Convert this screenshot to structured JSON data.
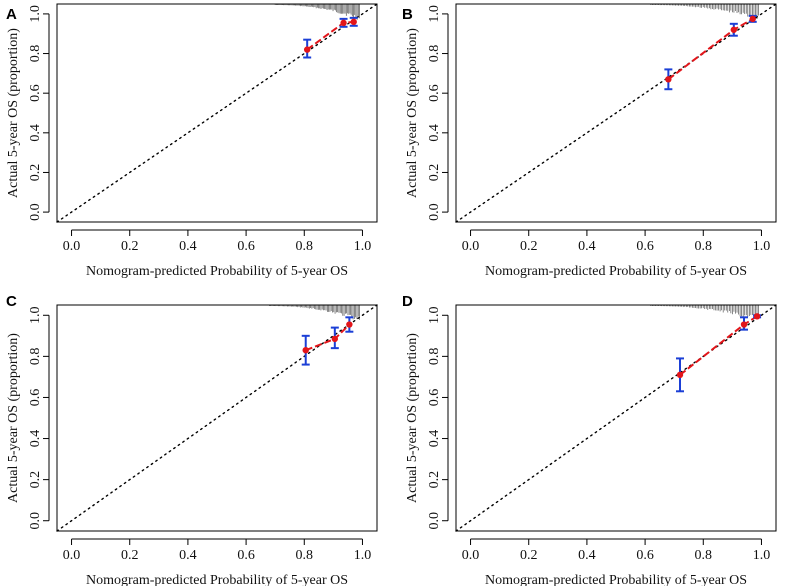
{
  "chart_data": [
    {
      "type": "scatter",
      "panel": "A",
      "xlabel": "Nomogram-predicted Probability of 5-year OS",
      "ylabel": "Actual 5-year OS (proportion)",
      "xlim": [
        -0.05,
        1.05
      ],
      "ylim": [
        -0.05,
        1.05
      ],
      "xticks": [
        "0.0",
        "0.2",
        "0.4",
        "0.6",
        "0.8",
        "1.0"
      ],
      "yticks": [
        "0.0",
        "0.2",
        "0.4",
        "0.6",
        "0.8",
        "1.0"
      ],
      "reference_line": "ideal (y = x), dotted",
      "points": [
        {
          "x": 0.81,
          "y": 0.82,
          "lower": 0.78,
          "upper": 0.87
        },
        {
          "x": 0.935,
          "y": 0.955,
          "lower": 0.935,
          "upper": 0.975
        },
        {
          "x": 0.97,
          "y": 0.96,
          "lower": 0.94,
          "upper": 0.98
        }
      ],
      "rug": {
        "from": 0.7,
        "to": 0.99
      }
    },
    {
      "type": "scatter",
      "panel": "B",
      "xlabel": "Nomogram-predicted Probability of 5-year OS",
      "ylabel": "Actual 5-year OS (proportion)",
      "xlim": [
        -0.05,
        1.05
      ],
      "ylim": [
        -0.05,
        1.05
      ],
      "xticks": [
        "0.0",
        "0.2",
        "0.4",
        "0.6",
        "0.8",
        "1.0"
      ],
      "yticks": [
        "0.0",
        "0.2",
        "0.4",
        "0.6",
        "0.8",
        "1.0"
      ],
      "reference_line": "ideal (y = x), dotted",
      "points": [
        {
          "x": 0.68,
          "y": 0.67,
          "lower": 0.62,
          "upper": 0.72
        },
        {
          "x": 0.905,
          "y": 0.92,
          "lower": 0.89,
          "upper": 0.95
        },
        {
          "x": 0.97,
          "y": 0.975,
          "lower": 0.96,
          "upper": 0.99
        }
      ],
      "rug": {
        "from": 0.62,
        "to": 0.99
      }
    },
    {
      "type": "scatter",
      "panel": "C",
      "xlabel": "Nomogram-predicted Probability of 5-year OS",
      "ylabel": "Actual 5-year OS (proportion)",
      "xlim": [
        -0.05,
        1.05
      ],
      "ylim": [
        -0.05,
        1.05
      ],
      "xticks": [
        "0.0",
        "0.2",
        "0.4",
        "0.6",
        "0.8",
        "1.0"
      ],
      "yticks": [
        "0.0",
        "0.2",
        "0.4",
        "0.6",
        "0.8",
        "1.0"
      ],
      "reference_line": "ideal (y = x), dotted",
      "points": [
        {
          "x": 0.805,
          "y": 0.83,
          "lower": 0.76,
          "upper": 0.9
        },
        {
          "x": 0.905,
          "y": 0.885,
          "lower": 0.84,
          "upper": 0.94
        },
        {
          "x": 0.955,
          "y": 0.955,
          "lower": 0.92,
          "upper": 0.99
        }
      ],
      "rug": {
        "from": 0.68,
        "to": 0.99
      }
    },
    {
      "type": "scatter",
      "panel": "D",
      "xlabel": "Nomogram-predicted Probability of 5-year OS",
      "ylabel": "Actual 5-year OS (proportion)",
      "xlim": [
        -0.05,
        1.05
      ],
      "ylim": [
        -0.05,
        1.05
      ],
      "xticks": [
        "0.0",
        "0.2",
        "0.4",
        "0.6",
        "0.8",
        "1.0"
      ],
      "yticks": [
        "0.0",
        "0.2",
        "0.4",
        "0.6",
        "0.8",
        "1.0"
      ],
      "reference_line": "ideal (y = x), dotted",
      "points": [
        {
          "x": 0.72,
          "y": 0.71,
          "lower": 0.63,
          "upper": 0.79
        },
        {
          "x": 0.94,
          "y": 0.955,
          "lower": 0.93,
          "upper": 0.99
        },
        {
          "x": 0.985,
          "y": 0.995,
          "lower": 0.99,
          "upper": 1.0
        }
      ],
      "rug": {
        "from": 0.62,
        "to": 0.99
      }
    }
  ],
  "colors": {
    "point": "#e3151a",
    "curve": "#e3151a",
    "errorbar": "#1b3fd6",
    "reference": "#000000",
    "rug": "#555555",
    "frame": "#000000"
  }
}
